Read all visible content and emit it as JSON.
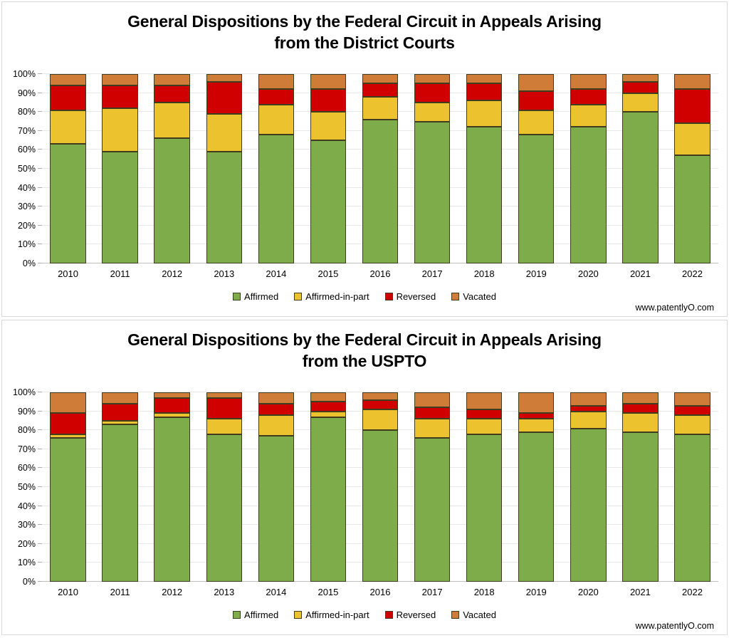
{
  "watermark": "www.patentlyO.com",
  "axis": {
    "ytick_labels": [
      "0%",
      "10%",
      "20%",
      "30%",
      "40%",
      "50%",
      "60%",
      "70%",
      "80%",
      "90%",
      "100%"
    ]
  },
  "chart_data": [
    {
      "type": "bar",
      "stacked": true,
      "units": "percent",
      "title": "General Dispositions by the Federal Circuit in Appeals Arising from the District Courts",
      "title_lines": [
        "General Dispositions by the Federal Circuit in Appeals Arising",
        "from the District Courts"
      ],
      "categories": [
        "2010",
        "2011",
        "2012",
        "2013",
        "2014",
        "2015",
        "2016",
        "2017",
        "2018",
        "2019",
        "2020",
        "2021",
        "2022"
      ],
      "series": [
        {
          "name": "Affirmed",
          "color": "#7fac4b",
          "values": [
            63,
            59,
            66,
            59,
            68,
            65,
            76,
            75,
            72,
            68,
            72,
            80,
            57
          ]
        },
        {
          "name": "Affirmed-in-part",
          "color": "#edc22f",
          "values": [
            18,
            23,
            19,
            20,
            16,
            15,
            12,
            10,
            14,
            13,
            12,
            10,
            17
          ]
        },
        {
          "name": "Reversed",
          "color": "#d00000",
          "values": [
            13,
            12,
            9,
            17,
            8,
            12,
            7,
            10,
            9,
            10,
            8,
            6,
            18
          ]
        },
        {
          "name": "Vacated",
          "color": "#cf7c38",
          "values": [
            6,
            6,
            6,
            4,
            8,
            8,
            5,
            5,
            5,
            9,
            8,
            4,
            8
          ]
        }
      ],
      "xlabel": "",
      "ylabel": "",
      "ylim": [
        0,
        100
      ],
      "ytick_step": 10,
      "ytick_suffix": "%",
      "grid": true,
      "legend_position": "bottom"
    },
    {
      "type": "bar",
      "stacked": true,
      "units": "percent",
      "title": "General Dispositions by the Federal Circuit in Appeals Arising from the USPTO",
      "title_lines": [
        "General Dispositions by the Federal Circuit in Appeals Arising",
        "from the USPTO"
      ],
      "categories": [
        "2010",
        "2011",
        "2012",
        "2013",
        "2014",
        "2015",
        "2016",
        "2017",
        "2018",
        "2019",
        "2020",
        "2021",
        "2022"
      ],
      "series": [
        {
          "name": "Affirmed",
          "color": "#7fac4b",
          "values": [
            76,
            83,
            87,
            78,
            77,
            87,
            80,
            76,
            78,
            79,
            81,
            79,
            78
          ]
        },
        {
          "name": "Affirmed-in-part",
          "color": "#edc22f",
          "values": [
            2,
            2,
            2,
            8,
            11,
            3,
            11,
            10,
            8,
            7,
            9,
            10,
            10
          ]
        },
        {
          "name": "Reversed",
          "color": "#d00000",
          "values": [
            11,
            9,
            8,
            11,
            6,
            5,
            5,
            6,
            5,
            3,
            3,
            5,
            5
          ]
        },
        {
          "name": "Vacated",
          "color": "#cf7c38",
          "values": [
            11,
            6,
            3,
            3,
            6,
            5,
            4,
            8,
            9,
            11,
            7,
            6,
            7
          ]
        }
      ],
      "xlabel": "",
      "ylabel": "",
      "ylim": [
        0,
        100
      ],
      "ytick_step": 10,
      "ytick_suffix": "%",
      "grid": true,
      "legend_position": "bottom"
    }
  ]
}
